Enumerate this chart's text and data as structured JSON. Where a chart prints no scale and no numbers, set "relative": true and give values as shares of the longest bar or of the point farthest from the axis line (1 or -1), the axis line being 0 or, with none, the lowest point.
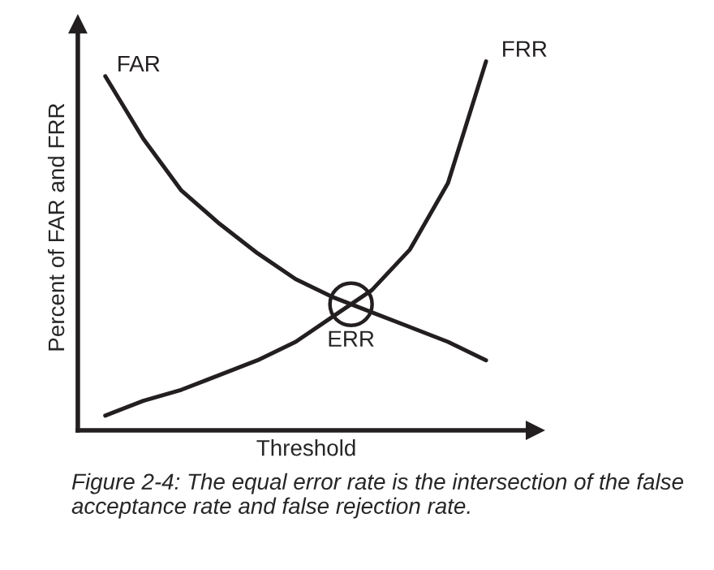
{
  "chart_data": {
    "type": "line",
    "relative": true,
    "xlabel": "Threshold",
    "ylabel": "Percent of FAR and FRR",
    "categories": [
      null,
      null,
      null,
      null,
      null,
      null,
      null,
      null,
      null,
      null,
      null
    ],
    "series": [
      {
        "name": "FAR",
        "color": "#231f20",
        "values": [
          0.96,
          0.79,
          0.65,
          0.56,
          0.48,
          0.41,
          0.36,
          0.32,
          0.28,
          0.24,
          0.19
        ]
      },
      {
        "name": "FRR",
        "color": "#231f20",
        "values": [
          0.04,
          0.08,
          0.11,
          0.15,
          0.19,
          0.24,
          0.31,
          0.38,
          0.49,
          0.67,
          1.0
        ]
      }
    ],
    "annotations": [
      "ERR",
      "Figure 2-4: The equal error rate is the intersection of the false acceptance rate and false rejection rate."
    ],
    "grid": false,
    "marker": "none",
    "line_style": "solid",
    "tick_labels": false
  }
}
